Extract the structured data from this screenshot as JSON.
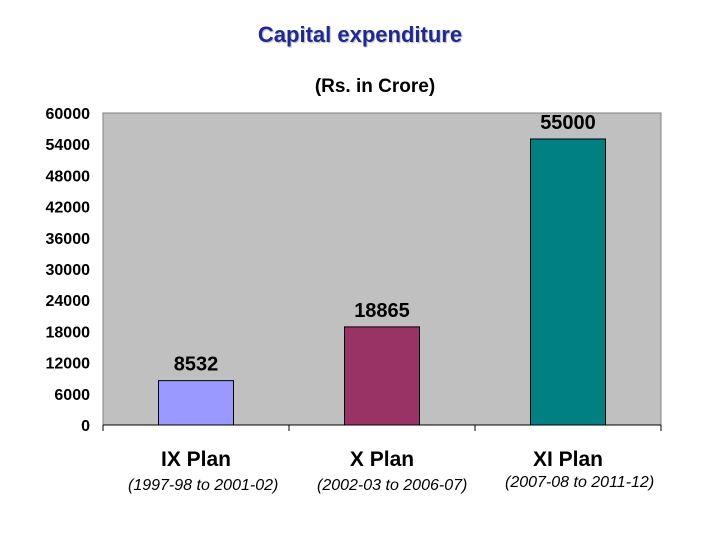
{
  "title": "Capital expenditure",
  "chart_data": {
    "type": "bar",
    "title": "Capital expenditure",
    "subtitle": "(Rs. in Crore)",
    "categories": [
      "IX Plan",
      "X Plan",
      "XI Plan"
    ],
    "values": [
      8532,
      18865,
      55000
    ],
    "value_labels": [
      "8532",
      "18865",
      "55000"
    ],
    "periods": [
      "(1997-98 to 2001-02)",
      "(2002-03 to 2006-07)",
      "(2007-08 to 2011-12)"
    ],
    "bar_colors": [
      "#9999ff",
      "#993366",
      "#008080"
    ],
    "plot_background": "#c0c0c0",
    "ylim": [
      0,
      60000
    ],
    "yticks": [
      0,
      6000,
      12000,
      18000,
      24000,
      30000,
      36000,
      42000,
      48000,
      54000,
      60000
    ],
    "ytick_labels": [
      "0",
      "6000",
      "12000",
      "18000",
      "24000",
      "30000",
      "36000",
      "42000",
      "48000",
      "54000",
      "60000"
    ],
    "grid": false,
    "legend": "none",
    "xlabel": "",
    "ylabel": ""
  }
}
